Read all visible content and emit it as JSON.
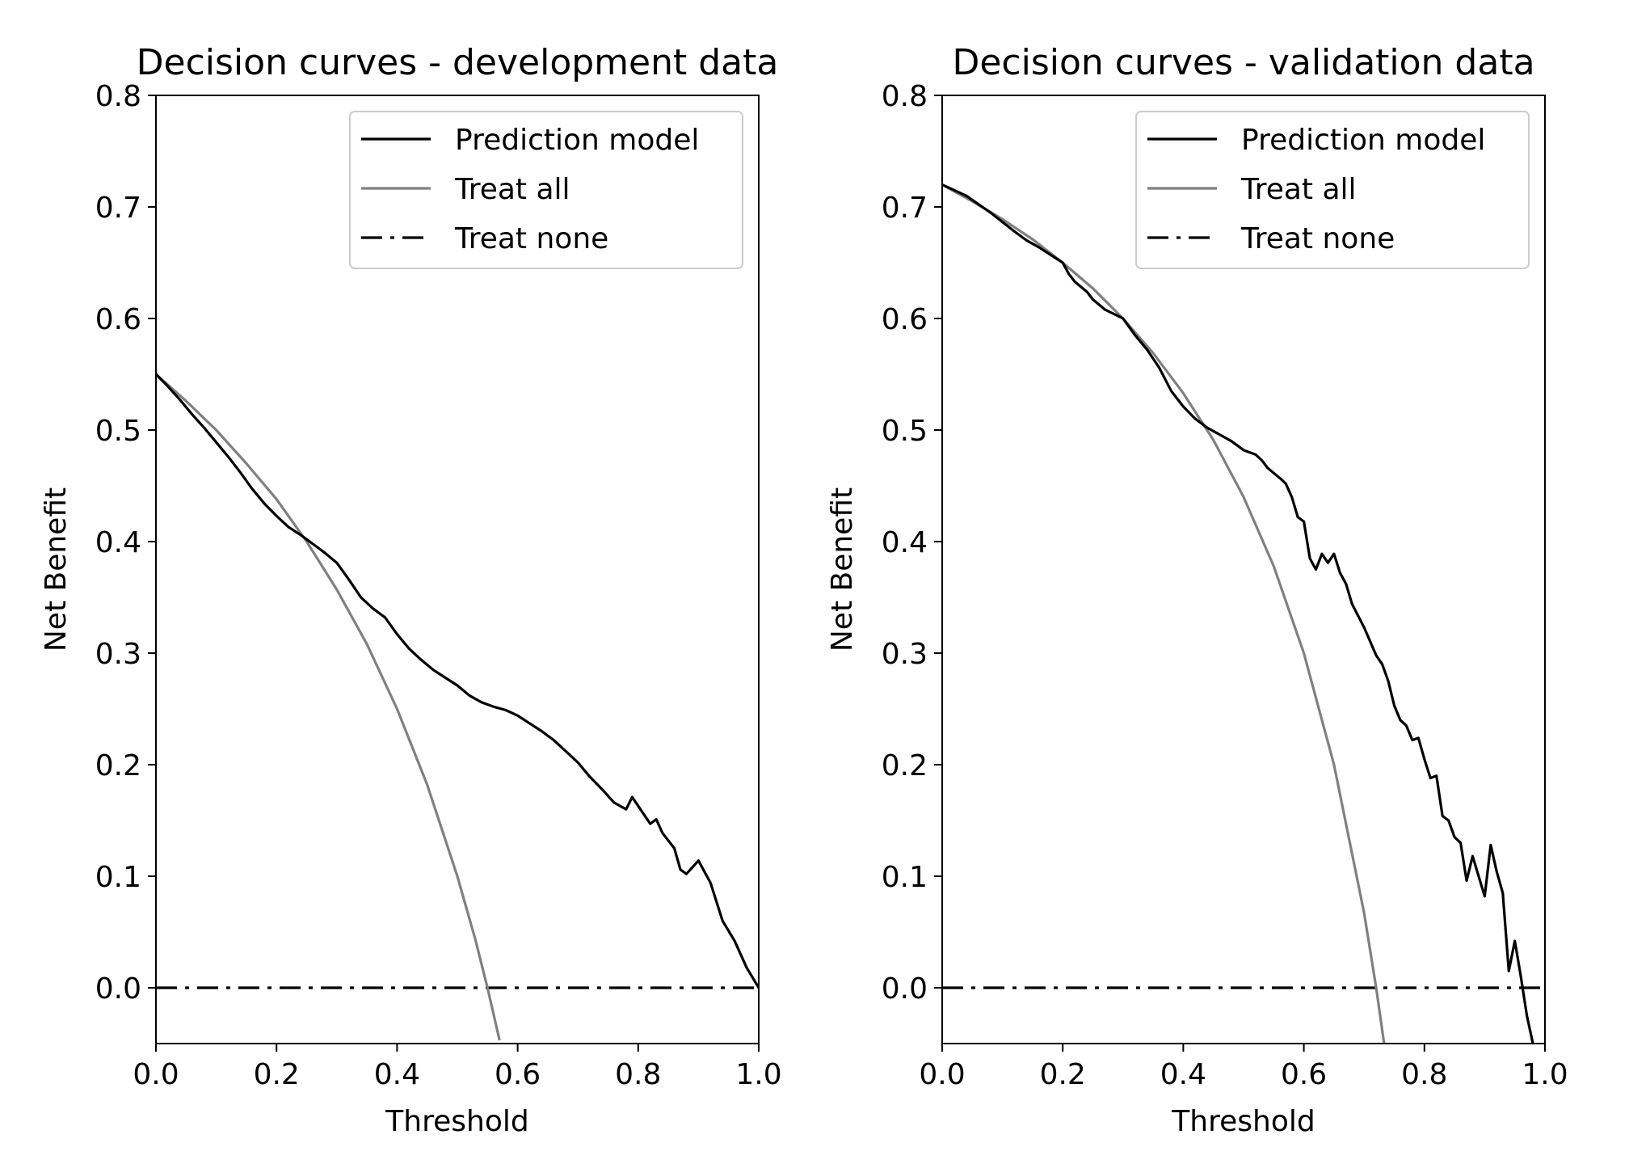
{
  "chart_data": [
    {
      "type": "line",
      "title": "Decision curves - development data",
      "xlabel": "Threshold",
      "ylabel": "Net Benefit",
      "xlim": [
        0.0,
        1.0
      ],
      "ylim": [
        -0.05,
        0.8
      ],
      "xticks": [
        "0.0",
        "0.2",
        "0.4",
        "0.6",
        "0.8",
        "1.0"
      ],
      "yticks": [
        "0.0",
        "0.1",
        "0.2",
        "0.3",
        "0.4",
        "0.5",
        "0.6",
        "0.7",
        "0.8"
      ],
      "legend_position": "top-right",
      "grid": false,
      "series": [
        {
          "name": "Prediction model",
          "color": "#000000",
          "style": "solid",
          "x": [
            0.0,
            0.02,
            0.04,
            0.06,
            0.08,
            0.1,
            0.12,
            0.14,
            0.16,
            0.18,
            0.2,
            0.22,
            0.24,
            0.26,
            0.28,
            0.3,
            0.32,
            0.34,
            0.36,
            0.38,
            0.4,
            0.42,
            0.44,
            0.46,
            0.48,
            0.5,
            0.52,
            0.54,
            0.56,
            0.58,
            0.6,
            0.62,
            0.64,
            0.66,
            0.68,
            0.7,
            0.72,
            0.74,
            0.76,
            0.78,
            0.79,
            0.8,
            0.82,
            0.83,
            0.84,
            0.86,
            0.87,
            0.88,
            0.9,
            0.92,
            0.94,
            0.96,
            0.98,
            1.0
          ],
          "y": [
            0.55,
            0.539,
            0.527,
            0.514,
            0.502,
            0.489,
            0.476,
            0.462,
            0.447,
            0.434,
            0.423,
            0.413,
            0.406,
            0.398,
            0.39,
            0.381,
            0.366,
            0.35,
            0.34,
            0.332,
            0.317,
            0.304,
            0.294,
            0.285,
            0.278,
            0.271,
            0.262,
            0.256,
            0.252,
            0.249,
            0.244,
            0.237,
            0.23,
            0.222,
            0.212,
            0.202,
            0.189,
            0.178,
            0.166,
            0.16,
            0.171,
            0.163,
            0.147,
            0.151,
            0.139,
            0.125,
            0.106,
            0.102,
            0.114,
            0.094,
            0.06,
            0.042,
            0.018,
            0.0
          ]
        },
        {
          "name": "Treat all",
          "color": "#808080",
          "style": "solid",
          "x": [
            0.0,
            0.05,
            0.1,
            0.15,
            0.2,
            0.25,
            0.3,
            0.35,
            0.4,
            0.45,
            0.5,
            0.53,
            0.55,
            0.57
          ],
          "y": [
            0.55,
            0.526,
            0.5,
            0.47,
            0.438,
            0.4,
            0.357,
            0.308,
            0.25,
            0.182,
            0.1,
            0.043,
            0.0,
            -0.047
          ]
        },
        {
          "name": "Treat none",
          "color": "#000000",
          "style": "dashdot",
          "x": [
            0.0,
            1.0
          ],
          "y": [
            0.0,
            0.0
          ]
        }
      ]
    },
    {
      "type": "line",
      "title": "Decision curves - validation data",
      "xlabel": "Threshold",
      "ylabel": "Net Benefit",
      "xlim": [
        0.0,
        1.0
      ],
      "ylim": [
        -0.05,
        0.8
      ],
      "xticks": [
        "0.0",
        "0.2",
        "0.4",
        "0.6",
        "0.8",
        "1.0"
      ],
      "yticks": [
        "0.0",
        "0.1",
        "0.2",
        "0.3",
        "0.4",
        "0.5",
        "0.6",
        "0.7",
        "0.8"
      ],
      "legend_position": "top-right",
      "grid": false,
      "series": [
        {
          "name": "Prediction model",
          "color": "#000000",
          "style": "solid",
          "x": [
            0.0,
            0.04,
            0.08,
            0.12,
            0.14,
            0.16,
            0.18,
            0.2,
            0.21,
            0.22,
            0.24,
            0.25,
            0.27,
            0.3,
            0.32,
            0.34,
            0.36,
            0.38,
            0.39,
            0.4,
            0.42,
            0.44,
            0.46,
            0.48,
            0.5,
            0.52,
            0.53,
            0.54,
            0.56,
            0.57,
            0.58,
            0.59,
            0.6,
            0.61,
            0.62,
            0.63,
            0.64,
            0.65,
            0.66,
            0.67,
            0.68,
            0.7,
            0.72,
            0.73,
            0.74,
            0.75,
            0.76,
            0.77,
            0.78,
            0.79,
            0.8,
            0.81,
            0.82,
            0.83,
            0.84,
            0.85,
            0.86,
            0.87,
            0.88,
            0.89,
            0.9,
            0.91,
            0.92,
            0.93,
            0.94,
            0.95,
            0.96,
            0.97,
            0.98
          ],
          "y": [
            0.72,
            0.71,
            0.695,
            0.678,
            0.67,
            0.664,
            0.657,
            0.65,
            0.64,
            0.633,
            0.624,
            0.617,
            0.608,
            0.6,
            0.585,
            0.572,
            0.556,
            0.535,
            0.528,
            0.521,
            0.51,
            0.502,
            0.496,
            0.49,
            0.482,
            0.478,
            0.473,
            0.466,
            0.457,
            0.452,
            0.44,
            0.422,
            0.418,
            0.385,
            0.375,
            0.389,
            0.381,
            0.389,
            0.372,
            0.362,
            0.344,
            0.323,
            0.298,
            0.29,
            0.275,
            0.253,
            0.24,
            0.235,
            0.222,
            0.224,
            0.205,
            0.188,
            0.19,
            0.154,
            0.15,
            0.135,
            0.13,
            0.096,
            0.118,
            0.1,
            0.082,
            0.128,
            0.104,
            0.085,
            0.015,
            0.042,
            0.01,
            -0.025,
            -0.05
          ]
        },
        {
          "name": "Treat all",
          "color": "#808080",
          "style": "solid",
          "x": [
            0.0,
            0.05,
            0.1,
            0.15,
            0.2,
            0.25,
            0.3,
            0.35,
            0.4,
            0.45,
            0.5,
            0.55,
            0.6,
            0.65,
            0.7,
            0.72,
            0.735
          ],
          "y": [
            0.72,
            0.705,
            0.689,
            0.671,
            0.65,
            0.627,
            0.6,
            0.569,
            0.533,
            0.491,
            0.44,
            0.378,
            0.3,
            0.2,
            0.067,
            0.0,
            -0.057
          ]
        },
        {
          "name": "Treat none",
          "color": "#000000",
          "style": "dashdot",
          "x": [
            0.0,
            1.0
          ],
          "y": [
            0.0,
            0.0
          ]
        }
      ]
    }
  ]
}
